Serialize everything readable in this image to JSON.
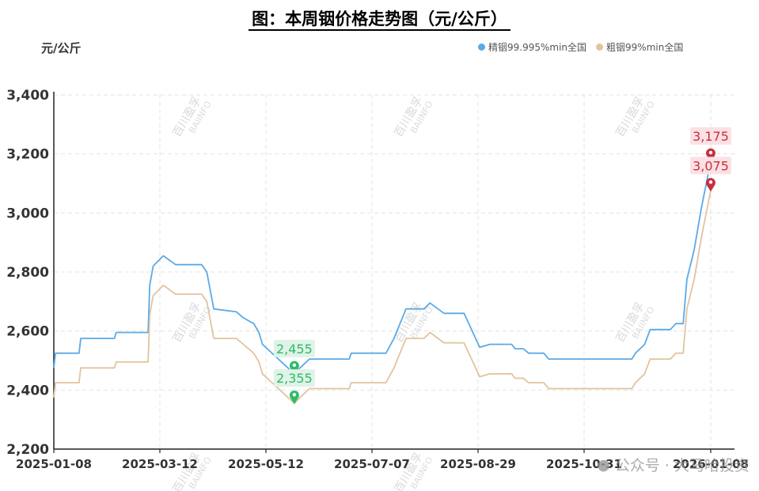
{
  "title": "图：本周铟价格走势图（元/公斤）",
  "unit": "元/公斤",
  "watermark": "百川盈孚",
  "watermark_sub": "BAIINFO",
  "footer_text": "公众号 · 大马哈投资",
  "colors": {
    "refined": "#5aaae8",
    "crude": "#e2c39e",
    "min_marker": "#2dbb6a",
    "max_marker": "#c9303f"
  },
  "chart_data": {
    "type": "line",
    "title": "图：本周铟价格走势图（元/公斤）",
    "ylabel": "元/公斤",
    "xlabel": "",
    "ylim": [
      2200,
      3400
    ],
    "yticks": [
      "2,200",
      "2,400",
      "2,600",
      "2,800",
      "3,000",
      "3,200",
      "3,400"
    ],
    "xticks": [
      "2025-01-08",
      "2025-03-12",
      "2025-05-12",
      "2025-07-07",
      "2025-08-29",
      "2025-10-31",
      "2026-01-08"
    ],
    "grid": true,
    "legend_position": "top-right",
    "series": [
      {
        "name": "精铟99.995%min全国",
        "color": "#5aaae8",
        "points": [
          [
            "2025-01-08",
            2475
          ],
          [
            "2025-01-09",
            2525
          ],
          [
            "2025-01-23",
            2525
          ],
          [
            "2025-01-24",
            2575
          ],
          [
            "2025-02-13",
            2575
          ],
          [
            "2025-02-14",
            2595
          ],
          [
            "2025-03-05",
            2595
          ],
          [
            "2025-03-06",
            2755
          ],
          [
            "2025-03-08",
            2820
          ],
          [
            "2025-03-14",
            2855
          ],
          [
            "2025-03-21",
            2825
          ],
          [
            "2025-04-05",
            2825
          ],
          [
            "2025-04-08",
            2800
          ],
          [
            "2025-04-12",
            2675
          ],
          [
            "2025-04-25",
            2665
          ],
          [
            "2025-04-29",
            2645
          ],
          [
            "2025-05-05",
            2625
          ],
          [
            "2025-05-08",
            2595
          ],
          [
            "2025-05-10",
            2555
          ],
          [
            "2025-05-27",
            2455
          ],
          [
            "2025-05-30",
            2475
          ],
          [
            "2025-06-04",
            2505
          ],
          [
            "2025-06-25",
            2505
          ],
          [
            "2025-06-26",
            2525
          ],
          [
            "2025-07-14",
            2525
          ],
          [
            "2025-07-18",
            2575
          ],
          [
            "2025-07-24",
            2675
          ],
          [
            "2025-08-02",
            2675
          ],
          [
            "2025-08-05",
            2695
          ],
          [
            "2025-08-12",
            2660
          ],
          [
            "2025-08-22",
            2660
          ],
          [
            "2025-08-30",
            2545
          ],
          [
            "2025-09-05",
            2555
          ],
          [
            "2025-09-18",
            2555
          ],
          [
            "2025-09-20",
            2540
          ],
          [
            "2025-09-25",
            2540
          ],
          [
            "2025-09-28",
            2525
          ],
          [
            "2025-10-07",
            2525
          ],
          [
            "2025-10-10",
            2505
          ],
          [
            "2025-11-26",
            2505
          ],
          [
            "2025-11-28",
            2525
          ],
          [
            "2025-12-03",
            2555
          ],
          [
            "2025-12-06",
            2605
          ],
          [
            "2025-12-17",
            2605
          ],
          [
            "2025-12-20",
            2625
          ],
          [
            "2025-12-24",
            2625
          ],
          [
            "2025-12-26",
            2775
          ],
          [
            "2025-12-30",
            2875
          ],
          [
            "2026-01-03",
            3020
          ],
          [
            "2026-01-08",
            3175
          ]
        ]
      },
      {
        "name": "粗铟99%min全国",
        "color": "#e2c39e",
        "points": [
          [
            "2025-01-08",
            2375
          ],
          [
            "2025-01-09",
            2425
          ],
          [
            "2025-01-23",
            2425
          ],
          [
            "2025-01-24",
            2475
          ],
          [
            "2025-02-13",
            2475
          ],
          [
            "2025-02-14",
            2495
          ],
          [
            "2025-03-05",
            2495
          ],
          [
            "2025-03-06",
            2655
          ],
          [
            "2025-03-08",
            2720
          ],
          [
            "2025-03-14",
            2755
          ],
          [
            "2025-03-21",
            2725
          ],
          [
            "2025-04-05",
            2725
          ],
          [
            "2025-04-08",
            2700
          ],
          [
            "2025-04-12",
            2575
          ],
          [
            "2025-04-25",
            2575
          ],
          [
            "2025-04-29",
            2555
          ],
          [
            "2025-05-05",
            2525
          ],
          [
            "2025-05-08",
            2495
          ],
          [
            "2025-05-10",
            2455
          ],
          [
            "2025-05-27",
            2355
          ],
          [
            "2025-05-30",
            2375
          ],
          [
            "2025-06-04",
            2405
          ],
          [
            "2025-06-25",
            2405
          ],
          [
            "2025-06-26",
            2425
          ],
          [
            "2025-07-14",
            2425
          ],
          [
            "2025-07-18",
            2475
          ],
          [
            "2025-07-24",
            2575
          ],
          [
            "2025-08-02",
            2575
          ],
          [
            "2025-08-05",
            2595
          ],
          [
            "2025-08-12",
            2560
          ],
          [
            "2025-08-22",
            2560
          ],
          [
            "2025-08-30",
            2445
          ],
          [
            "2025-09-05",
            2455
          ],
          [
            "2025-09-18",
            2455
          ],
          [
            "2025-09-20",
            2440
          ],
          [
            "2025-09-25",
            2440
          ],
          [
            "2025-09-28",
            2425
          ],
          [
            "2025-10-07",
            2425
          ],
          [
            "2025-10-10",
            2405
          ],
          [
            "2025-11-26",
            2405
          ],
          [
            "2025-11-28",
            2425
          ],
          [
            "2025-12-03",
            2455
          ],
          [
            "2025-12-06",
            2505
          ],
          [
            "2025-12-17",
            2505
          ],
          [
            "2025-12-20",
            2525
          ],
          [
            "2025-12-24",
            2525
          ],
          [
            "2025-12-26",
            2675
          ],
          [
            "2025-12-30",
            2775
          ],
          [
            "2026-01-03",
            2920
          ],
          [
            "2026-01-08",
            3075
          ]
        ]
      }
    ],
    "annotations": [
      {
        "label": "2,455",
        "date": "2025-05-27",
        "value": 2455,
        "kind": "min"
      },
      {
        "label": "2,355",
        "date": "2025-05-27",
        "value": 2355,
        "kind": "min"
      },
      {
        "label": "3,175",
        "date": "2026-01-08",
        "value": 3175,
        "kind": "max"
      },
      {
        "label": "3,075",
        "date": "2026-01-08",
        "value": 3075,
        "kind": "max"
      }
    ]
  }
}
